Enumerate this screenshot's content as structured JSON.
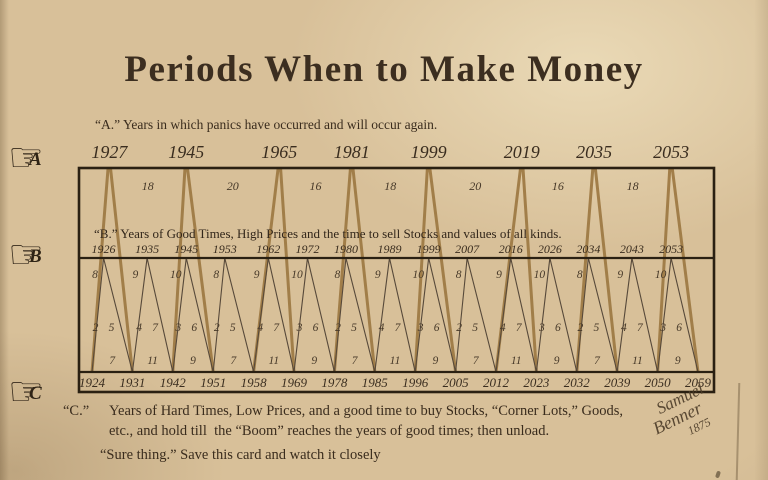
{
  "title": "Periods When to Make Money",
  "sections": {
    "a_description": "“A.” Years in which panics have occurred and will occur again.",
    "b_description": "“B.” Years of Good Times, High Prices and the time to sell Stocks and values of all kinds.",
    "c_label": "“C.”",
    "c_line1": "Years of Hard Times, Low Prices, and a good time to buy Stocks, “Corner Lots,” Goods,",
    "c_line2": "etc., and hold till  the “Boom” reaches the years of good times; then unload.",
    "footer": "“Sure thing.” Save this card and watch it closely"
  },
  "row_labels": {
    "a": "A",
    "b": "B",
    "c": "C"
  },
  "icons": {
    "pointing_hand": "☞"
  },
  "signature": {
    "first": "Samuel",
    "last": "Benner",
    "year": "1875"
  },
  "colors": {
    "paper": "#d8c099",
    "ink": "#3a2c1d",
    "year_ink": "#3a2d1f",
    "number_ink": "#473929",
    "cycle_a_line": "#9e7a44",
    "cycle_b_line": "#57493a",
    "border": "#2a2012"
  },
  "chart_data": {
    "type": "line",
    "title": "Periods When to Make Money",
    "x_axis_unit": "year",
    "legend_position": "none",
    "grid": false,
    "series_a_panic_years": {
      "years": [
        1927,
        1945,
        1965,
        1981,
        1999,
        2019,
        2035,
        2053
      ],
      "intervals_between_years": [
        18,
        20,
        16,
        18,
        20,
        16,
        18
      ]
    },
    "series_b_good_times_years": {
      "years": [
        1926,
        1935,
        1945,
        1953,
        1962,
        1972,
        1980,
        1989,
        1999,
        2007,
        2016,
        2026,
        2034,
        2043,
        2053
      ],
      "leading_intervals": [
        8,
        9,
        10,
        8,
        9,
        10,
        8,
        9,
        10,
        8,
        9,
        10,
        8,
        9,
        10
      ],
      "mid_pair_annotations": [
        "2 5",
        "4 7",
        "3 6",
        "2 5",
        "4 7",
        "3 6",
        "2 5",
        "4 7",
        "3 6",
        "2 5",
        "4 7",
        "3 6",
        "2 5",
        "4 7",
        "3 6"
      ]
    },
    "series_c_hard_times_years": {
      "years": [
        1924,
        1931,
        1942,
        1951,
        1958,
        1969,
        1978,
        1985,
        1996,
        2005,
        2012,
        2023,
        2032,
        2039,
        2050,
        2059
      ],
      "intervals_between_years": [
        7,
        11,
        9,
        7,
        11,
        9,
        7,
        11,
        9,
        7,
        11,
        9,
        7,
        11,
        9
      ]
    }
  }
}
